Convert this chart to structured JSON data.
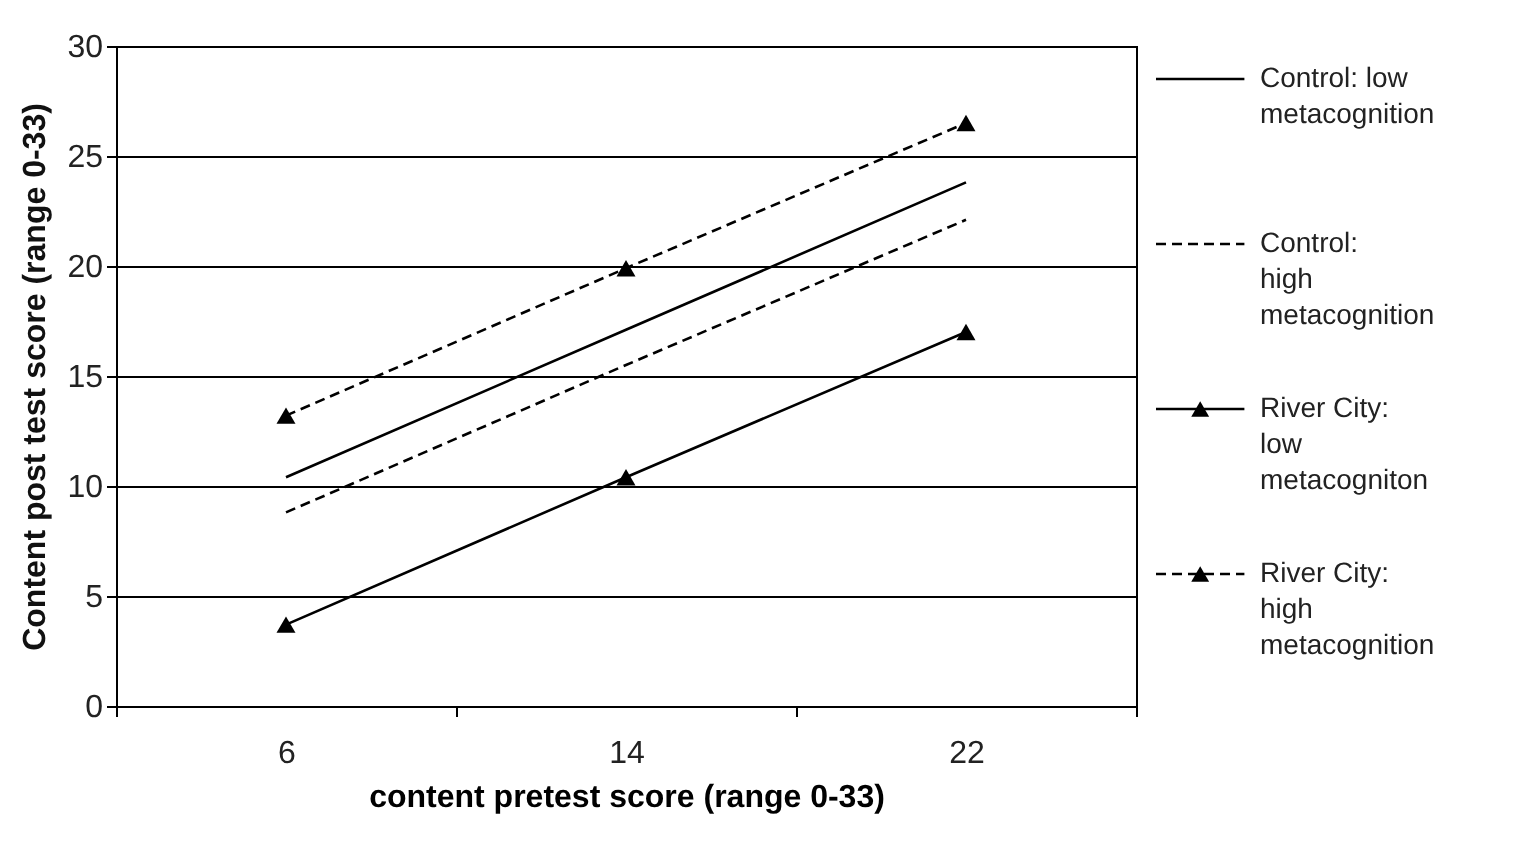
{
  "chart_data": {
    "type": "line",
    "xlabel": "content pretest score (range 0-33)",
    "ylabel": "Content post test score (range 0-33)",
    "categories": [
      "6",
      "14",
      "22"
    ],
    "series": [
      {
        "name": "Control: low metacognition",
        "color": "#000000",
        "line_style": "solid",
        "marker": "none",
        "values": [
          10.4,
          17.1,
          23.8
        ]
      },
      {
        "name": "Control: high metacognition",
        "color": "#000000",
        "line_style": "dashed",
        "marker": "none",
        "values": [
          8.8,
          15.5,
          22.1
        ]
      },
      {
        "name": "River City: low metacogniton",
        "color": "#000000",
        "line_style": "solid",
        "marker": "triangle",
        "values": [
          3.7,
          10.4,
          17.0
        ]
      },
      {
        "name": "River City: high metacognition",
        "color": "#000000",
        "line_style": "dashed",
        "marker": "triangle",
        "values": [
          13.2,
          19.9,
          26.5
        ]
      }
    ],
    "ylim": [
      0,
      30
    ],
    "yticks": [
      0,
      5,
      10,
      15,
      20,
      25,
      30
    ],
    "grid": "y",
    "legend": "right"
  }
}
